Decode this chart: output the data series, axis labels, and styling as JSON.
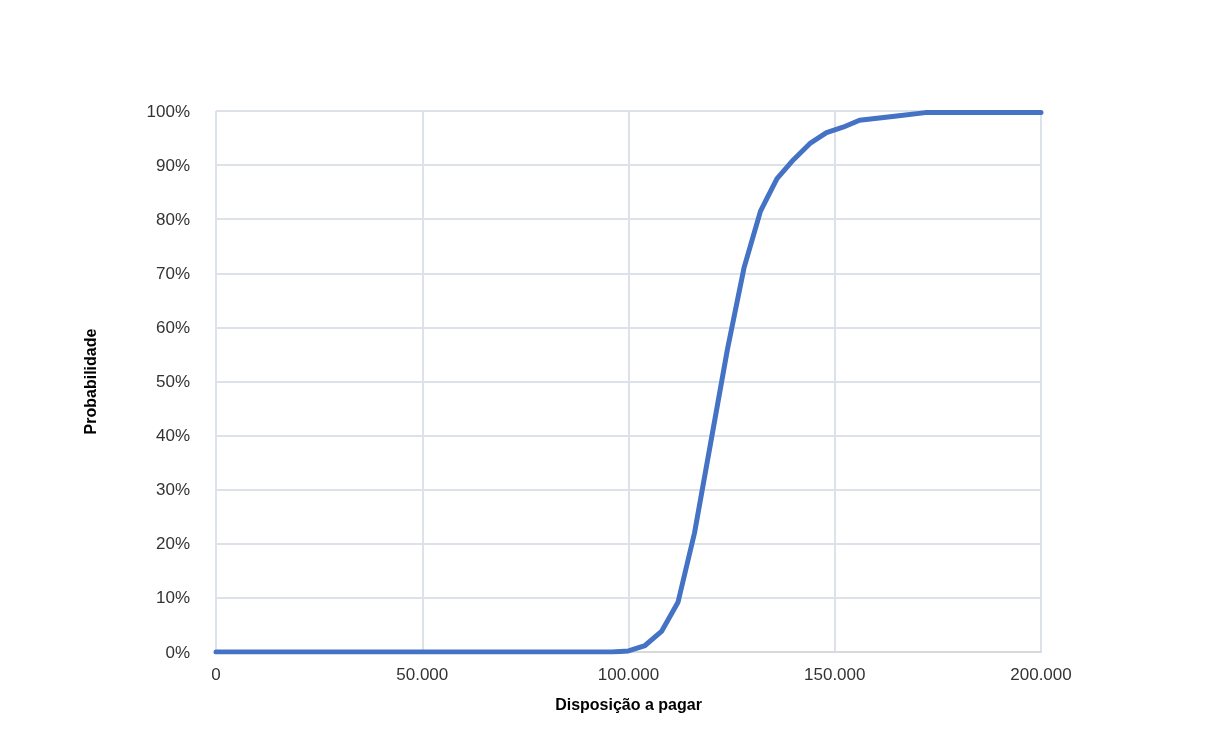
{
  "chart_data": {
    "type": "line",
    "xlabel": "Disposição a pagar",
    "ylabel": "Probabilidade",
    "series": [
      {
        "color": "#4472c4",
        "x": [
          0,
          96000,
          100000,
          104000,
          108000,
          112000,
          116000,
          120000,
          124000,
          128000,
          132000,
          136000,
          140000,
          144000,
          148000,
          152000,
          156000,
          164000,
          172000,
          200000
        ],
        "values": [
          0,
          0,
          0.2,
          1.2,
          3.8,
          9.2,
          22,
          39,
          56,
          71,
          81.5,
          87.5,
          91,
          94,
          96,
          97,
          98.3,
          99,
          99.7,
          99.7
        ]
      }
    ],
    "xlim": [
      0,
      200000
    ],
    "xticks": [
      {
        "value": 0,
        "label": "0"
      },
      {
        "value": 50000,
        "label": "50.000"
      },
      {
        "value": 100000,
        "label": "100.000"
      },
      {
        "value": 150000,
        "label": "150.000"
      },
      {
        "value": 200000,
        "label": "200.000"
      }
    ],
    "ylim": [
      0,
      100
    ],
    "yticks": [
      {
        "value": 0,
        "label": "0%"
      },
      {
        "value": 10,
        "label": "10%"
      },
      {
        "value": 20,
        "label": "20%"
      },
      {
        "value": 30,
        "label": "30%"
      },
      {
        "value": 40,
        "label": "40%"
      },
      {
        "value": 50,
        "label": "50%"
      },
      {
        "value": 60,
        "label": "60%"
      },
      {
        "value": 70,
        "label": "70%"
      },
      {
        "value": 80,
        "label": "80%"
      },
      {
        "value": 90,
        "label": "90%"
      },
      {
        "value": 100,
        "label": "100%"
      }
    ],
    "grid": true,
    "marker": "none",
    "line_style": "solid"
  }
}
